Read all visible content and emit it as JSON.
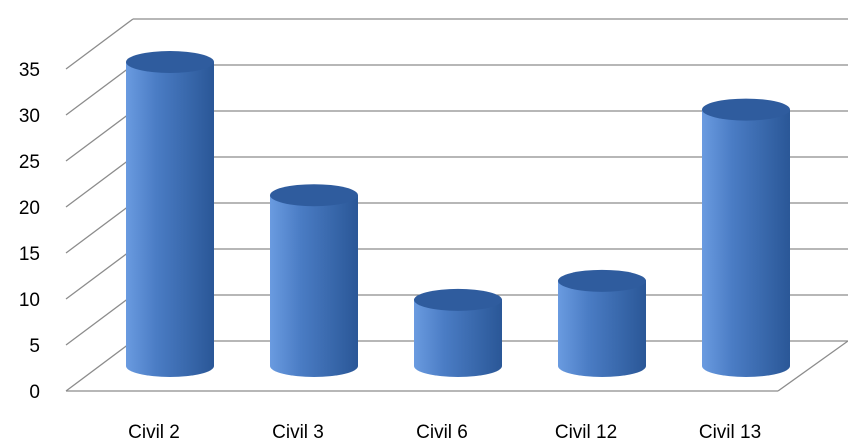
{
  "chart_data": {
    "type": "bar",
    "style": "3d-cylinder",
    "title": "",
    "xlabel": "",
    "ylabel": "",
    "categories": [
      "Civil 2",
      "Civil 3",
      "Civil 6",
      "Civil 12",
      "Civil 13"
    ],
    "values": [
      33,
      19,
      8,
      10,
      28
    ],
    "yticks": [
      "0",
      "5",
      "10",
      "15",
      "20",
      "25",
      "30",
      "35"
    ],
    "ylim": [
      0,
      35
    ],
    "grid": true,
    "legend": "none",
    "colors": {
      "bar_light": "#6a9be0",
      "bar_mid": "#4a7cc4",
      "bar_dark": "#2a5797",
      "bar_top": "#2f5c9e",
      "grid": "#8c8c8c"
    }
  }
}
